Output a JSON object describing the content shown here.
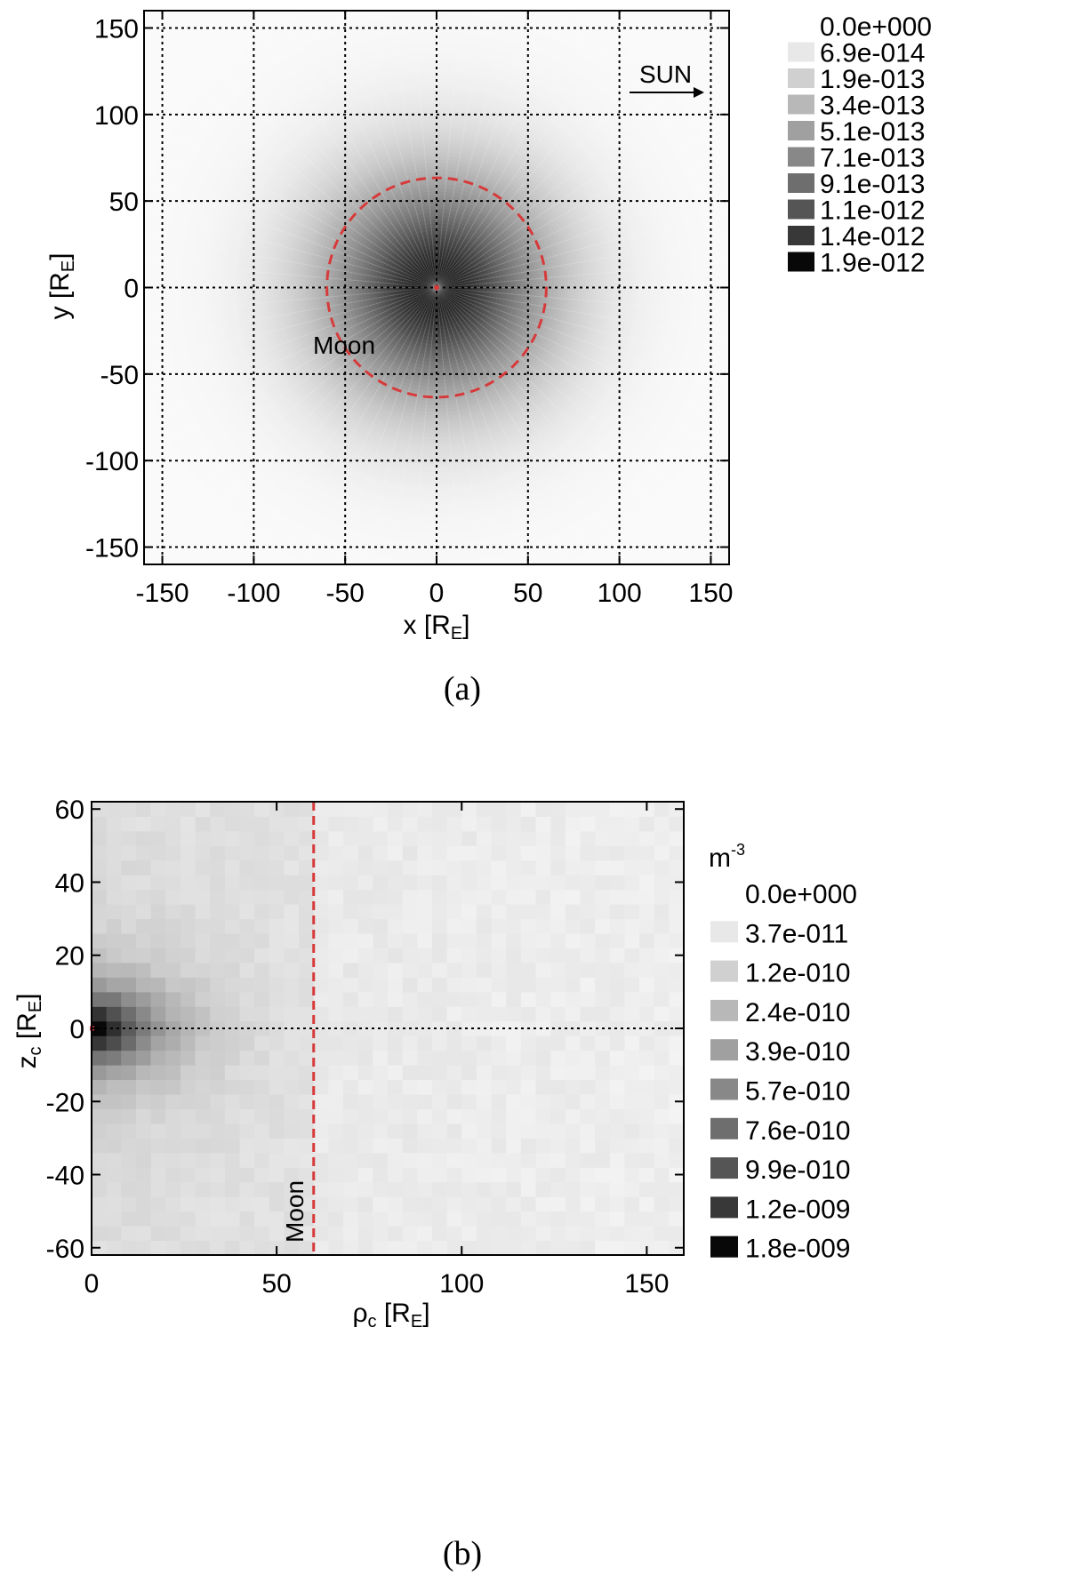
{
  "chart_data": [
    {
      "type": "heatmap",
      "panel_label": "(a)",
      "xlabel": {
        "main": "x [R",
        "sub": "E",
        "end": "]"
      },
      "ylabel": {
        "main": "y [R",
        "sub": "E",
        "end": "]"
      },
      "xlim": [
        -160,
        160
      ],
      "ylim": [
        -160,
        160
      ],
      "xticks": [
        -150,
        -100,
        -50,
        0,
        50,
        100,
        150
      ],
      "yticks": [
        -150,
        -100,
        -50,
        0,
        50,
        100,
        150
      ],
      "grid": true,
      "pattern": "radial",
      "moon_orbit_radius": 60,
      "moon_label": "Moon",
      "sun_label": "SUN",
      "legend": {
        "placement": "right",
        "unit": "",
        "levels": [
          "0.0e+000",
          "6.9e-014",
          "1.9e-013",
          "3.4e-013",
          "5.1e-013",
          "7.1e-013",
          "9.1e-013",
          "1.1e-012",
          "1.4e-012",
          "1.9e-012"
        ],
        "colors": [
          "#ffffff",
          "#e8e8e8",
          "#d0d0d0",
          "#b8b8b8",
          "#a0a0a0",
          "#888888",
          "#6e6e6e",
          "#555555",
          "#383838",
          "#080808"
        ]
      }
    },
    {
      "type": "heatmap",
      "panel_label": "(b)",
      "xlabel": {
        "main": "ρ",
        "sub": "c",
        "end": " [R",
        "sub2": "E",
        "end2": "]"
      },
      "ylabel": {
        "main": "z",
        "sub": "c",
        "end": " [R",
        "sub2": "E",
        "end2": "]"
      },
      "xlim": [
        0,
        160
      ],
      "ylim": [
        -62,
        62
      ],
      "xticks": [
        0,
        50,
        100,
        150
      ],
      "yticks": [
        -60,
        -40,
        -20,
        0,
        20,
        40,
        60
      ],
      "grid": false,
      "pattern": "cylindrical",
      "moon_distance": 60,
      "moon_label": "Moon",
      "legend": {
        "placement": "right",
        "unit": "m",
        "unit_exp": "-3",
        "levels": [
          "0.0e+000",
          "3.7e-011",
          "1.2e-010",
          "2.4e-010",
          "3.9e-010",
          "5.7e-010",
          "7.6e-010",
          "9.9e-010",
          "1.2e-009",
          "1.8e-009"
        ],
        "colors": [
          "#ffffff",
          "#e8e8e8",
          "#d0d0d0",
          "#b8b8b8",
          "#a0a0a0",
          "#888888",
          "#6e6e6e",
          "#555555",
          "#383838",
          "#080808"
        ]
      }
    }
  ]
}
